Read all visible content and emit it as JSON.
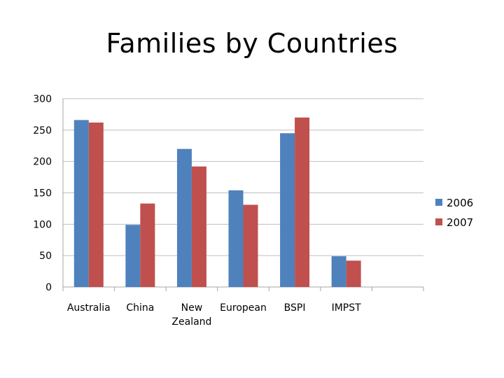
{
  "title": "Families by Countries",
  "chart_data": {
    "type": "bar",
    "categories": [
      "Australia",
      "China",
      "New\nZealand",
      "European",
      "BSPI",
      "IMPST"
    ],
    "series": [
      {
        "name": "2006",
        "values": [
          266,
          99,
          220,
          154,
          245,
          49
        ],
        "color": "#4F81BD"
      },
      {
        "name": "2007",
        "values": [
          262,
          133,
          192,
          131,
          270,
          42
        ],
        "color": "#C0504D"
      }
    ],
    "y_ticks": [
      "0",
      "50",
      "100",
      "150",
      "200",
      "250",
      "300"
    ],
    "ylim": [
      0,
      300
    ],
    "grid": true,
    "legend_position": "right"
  }
}
